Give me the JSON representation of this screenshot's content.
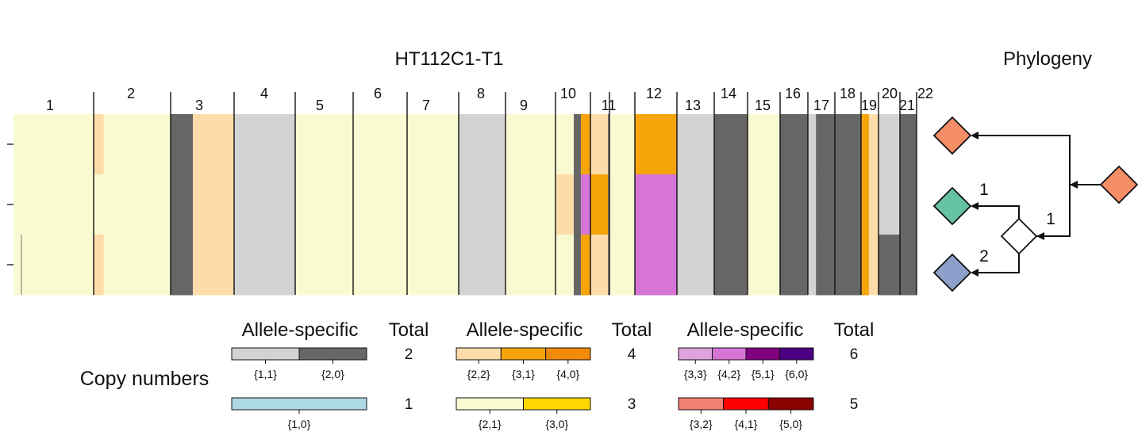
{
  "title": "HT112C1-T1",
  "phylogeny_title": "Phylogeny",
  "chromosomes": [
    "1",
    "2",
    "3",
    "4",
    "5",
    "6",
    "7",
    "8",
    "9",
    "10",
    "11",
    "12",
    "13",
    "14",
    "15",
    "16",
    "17",
    "18",
    "19",
    "20",
    "21",
    "22"
  ],
  "colors": {
    "2_1": "#fafad2",
    "2_2": "#fddcaa",
    "2_0": "#666666",
    "1_1": "#d3d3d3",
    "3_1": "#f5a40a",
    "4_0": "#f28a0a",
    "4_2": "#d675d6",
    "3_3": "#dfa2df",
    "5_1": "#800080",
    "6_0": "#4b0082",
    "1_0": "#add8e6",
    "3_0": "#ffd700",
    "3_2": "#f08070",
    "4_1": "#ff0000",
    "5_0": "#8b0000"
  },
  "heatmap": {
    "rows": 3,
    "segments": [
      {
        "chr": "1",
        "states": [
          "2_1",
          "2_1",
          "2_1"
        ]
      },
      {
        "chr": "2",
        "states": [
          "2_1",
          "2_1",
          "2_1"
        ],
        "sub": [
          {
            "frac": [
              0.0,
              0.13
            ],
            "states": [
              "2_2",
              "2_1",
              "2_2"
            ]
          }
        ]
      },
      {
        "chr": "3",
        "states": [
          "2_0",
          "2_0",
          "2_0"
        ],
        "sub": [
          {
            "frac": [
              0.35,
              1.0
            ],
            "states": [
              "2_2",
              "2_2",
              "2_2"
            ]
          }
        ]
      },
      {
        "chr": "4",
        "states": [
          "1_1",
          "1_1",
          "1_1"
        ]
      },
      {
        "chr": "5",
        "states": [
          "2_1",
          "2_1",
          "2_1"
        ]
      },
      {
        "chr": "6",
        "states": [
          "2_1",
          "2_1",
          "2_1"
        ]
      },
      {
        "chr": "7",
        "states": [
          "2_1",
          "2_1",
          "2_1"
        ]
      },
      {
        "chr": "8",
        "states": [
          "1_1",
          "1_1",
          "1_1"
        ]
      },
      {
        "chr": "9",
        "states": [
          "2_1",
          "2_1",
          "2_1"
        ]
      },
      {
        "chr": "10",
        "states": [
          "2_1",
          "2_2",
          "2_1"
        ],
        "sub": [
          {
            "frac": [
              0.72,
              1.0
            ],
            "states": [
              "2_0",
              "2_0",
              "2_0"
            ]
          }
        ]
      },
      {
        "chr": "11",
        "states": [
          "2_0",
          "2_0",
          "2_0"
        ],
        "sub": [
          {
            "frac": [
              0.0,
              0.35
            ],
            "states": [
              "3_1",
              "4_2",
              "3_1"
            ]
          },
          {
            "frac": [
              0.35,
              0.95
            ],
            "states": [
              "2_2",
              "3_1",
              "2_2"
            ]
          }
        ]
      },
      {
        "chr": "12",
        "states": [
          "2_1",
          "2_1",
          "2_1"
        ]
      },
      {
        "chr": "13",
        "states": [
          "3_1",
          "4_2",
          "4_2"
        ]
      },
      {
        "chr": "14",
        "states": [
          "1_1",
          "1_1",
          "1_1"
        ]
      },
      {
        "chr": "15",
        "states": [
          "2_0",
          "2_0",
          "2_0"
        ]
      },
      {
        "chr": "16",
        "states": [
          "2_1",
          "2_1",
          "2_1"
        ]
      },
      {
        "chr": "17",
        "states": [
          "2_0",
          "2_0",
          "2_0"
        ]
      },
      {
        "chr": "18",
        "states": [
          "2_0",
          "2_0",
          "2_0"
        ],
        "sub": [
          {
            "frac": [
              0.0,
              0.3
            ],
            "states": [
              "1_1",
              "1_1",
              "1_1"
            ]
          }
        ]
      },
      {
        "chr": "19",
        "states": [
          "2_0",
          "2_0",
          "2_0"
        ]
      },
      {
        "chr": "20",
        "states": [
          "2_2",
          "2_2",
          "2_2"
        ],
        "sub": [
          {
            "frac": [
              0.0,
              0.45
            ],
            "states": [
              "3_1",
              "3_1",
              "3_1"
            ]
          }
        ]
      },
      {
        "chr": "21",
        "states": [
          "1_1",
          "1_1",
          "2_0"
        ]
      },
      {
        "chr": "22",
        "states": [
          "2_0",
          "2_0",
          "2_0"
        ]
      }
    ]
  },
  "phylogeny": {
    "root_color": "#f58d66",
    "leaves": [
      {
        "color": "#f58d66",
        "edge_label": ""
      },
      {
        "color": "#66c2a5",
        "edge_label": "1"
      },
      {
        "color": "#8da0cb",
        "edge_label": "2"
      }
    ],
    "internal_edge_label": "1",
    "internal_color": "#ffffff"
  },
  "legend": {
    "row_label": "Copy numbers",
    "column_headers": {
      "allele": "Allele-specific",
      "total": "Total"
    },
    "groups": [
      {
        "total": "2",
        "keys": [
          "1_1",
          "2_0"
        ],
        "labels": [
          "{1,1}",
          "{2,0}"
        ]
      },
      {
        "total": "1",
        "keys": [
          "1_0"
        ],
        "labels": [
          "{1,0}"
        ]
      },
      {
        "total": "4",
        "keys": [
          "2_2",
          "3_1",
          "4_0"
        ],
        "labels": [
          "{2,2}",
          "{3,1}",
          "{4,0}"
        ]
      },
      {
        "total": "3",
        "keys": [
          "2_1",
          "3_0"
        ],
        "labels": [
          "{2,1}",
          "{3,0}"
        ]
      },
      {
        "total": "6",
        "keys": [
          "3_3",
          "4_2",
          "5_1",
          "6_0"
        ],
        "labels": [
          "{3,3}",
          "{4,2}",
          "{5,1}",
          "{6,0}"
        ]
      },
      {
        "total": "5",
        "keys": [
          "3_2",
          "4_1",
          "5_0"
        ],
        "labels": [
          "{3,2}",
          "{4,1}",
          "{5,0}"
        ]
      }
    ]
  }
}
